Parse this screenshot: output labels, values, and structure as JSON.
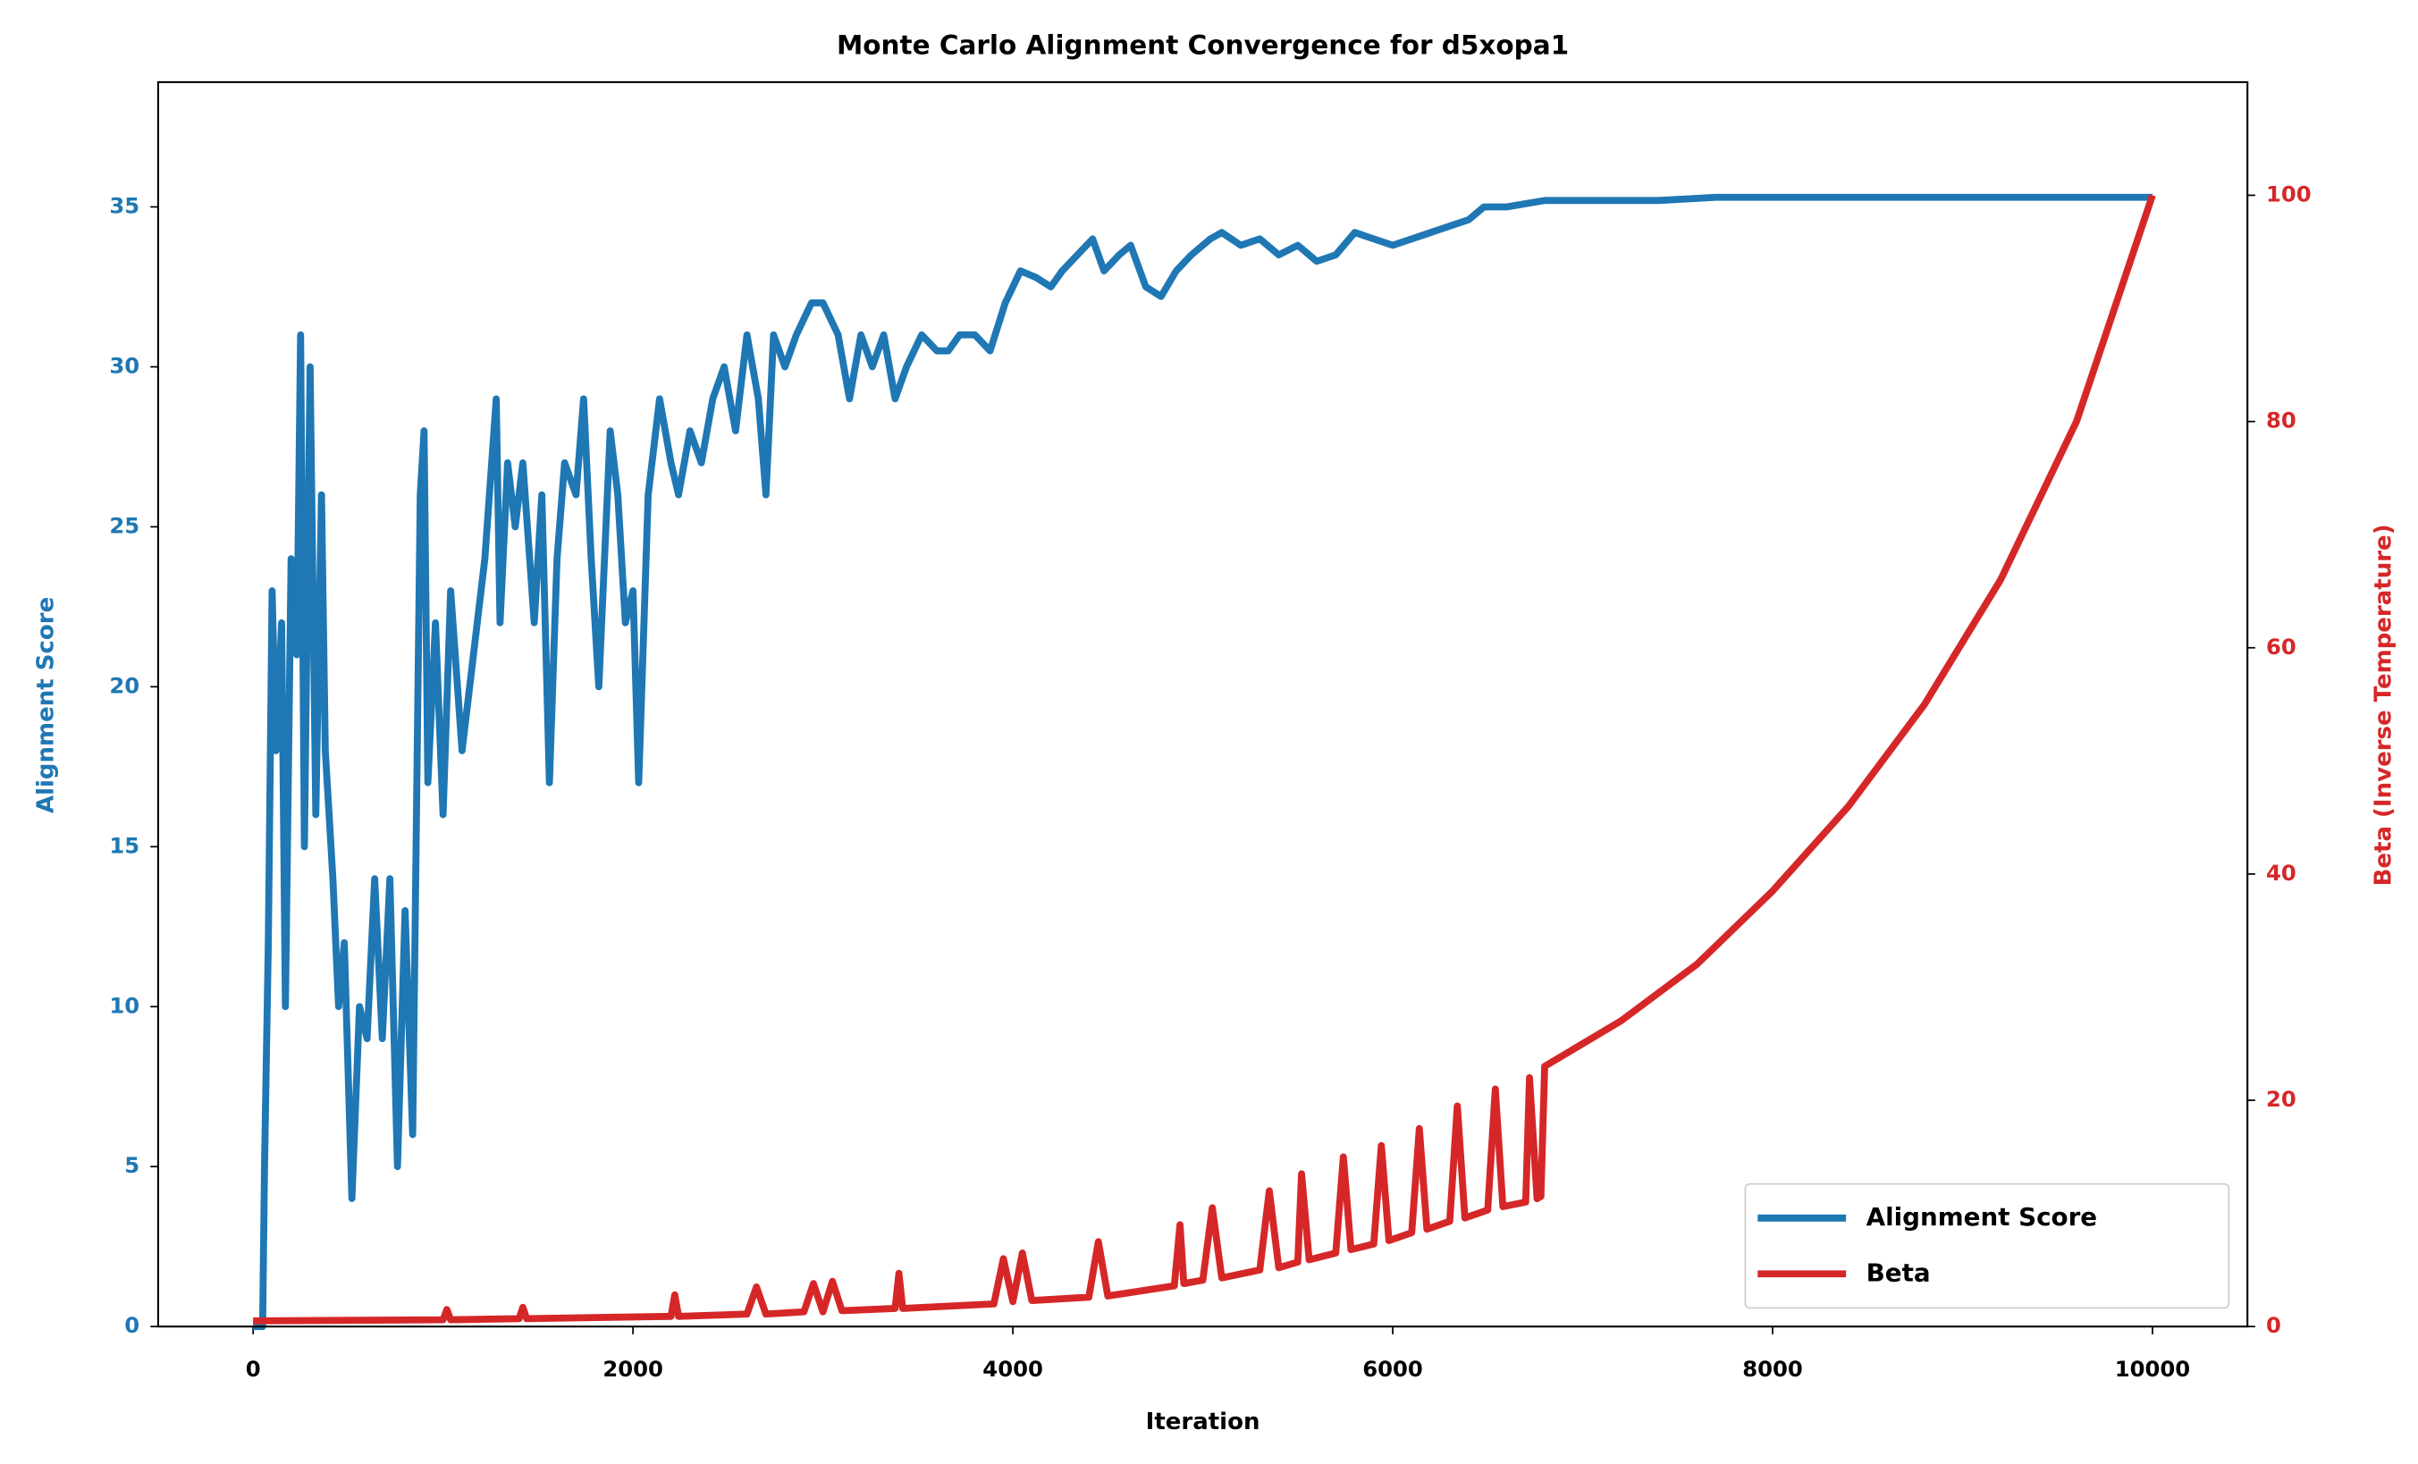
{
  "chart_data": {
    "type": "line",
    "title": "Monte Carlo Alignment Convergence for d5xopa1",
    "x_label": "Iteration",
    "y_label": "Alignment Score",
    "y2_label": "Beta (Inverse Temperature)",
    "xlim": [
      -500,
      10500
    ],
    "xticks": [
      0,
      2000,
      4000,
      6000,
      8000,
      10000
    ],
    "ylim": [
      0,
      38.9
    ],
    "yticks": [
      0,
      5,
      10,
      15,
      20,
      25,
      30,
      35
    ],
    "y2lim": [
      0,
      110
    ],
    "y2ticks": [
      0,
      20,
      40,
      60,
      80,
      100
    ],
    "legend": "lower right",
    "series": [
      {
        "name": "Alignment Score",
        "color": "#1f77b4",
        "axis": "y",
        "x": [
          0,
          50,
          60,
          80,
          100,
          120,
          150,
          170,
          200,
          230,
          250,
          270,
          300,
          330,
          360,
          380,
          420,
          450,
          480,
          520,
          560,
          600,
          640,
          680,
          720,
          760,
          800,
          840,
          860,
          880,
          900,
          920,
          960,
          1000,
          1040,
          1100,
          1160,
          1220,
          1280,
          1300,
          1340,
          1380,
          1420,
          1480,
          1520,
          1560,
          1600,
          1640,
          1700,
          1740,
          1780,
          1820,
          1880,
          1920,
          1960,
          2000,
          2030,
          2080,
          2140,
          2200,
          2240,
          2300,
          2360,
          2420,
          2480,
          2540,
          2600,
          2660,
          2700,
          2740,
          2800,
          2860,
          2940,
          3000,
          3080,
          3140,
          3200,
          3260,
          3320,
          3380,
          3440,
          3520,
          3600,
          3660,
          3720,
          3800,
          3880,
          3960,
          4040,
          4120,
          4200,
          4260,
          4340,
          4420,
          4480,
          4560,
          4620,
          4700,
          4780,
          4860,
          4940,
          5040,
          5100,
          5200,
          5300,
          5400,
          5500,
          5600,
          5700,
          5800,
          5900,
          6000,
          6100,
          6200,
          6300,
          6400,
          6480,
          6600,
          6800,
          7400,
          7700,
          10000
        ],
        "values": [
          0,
          0,
          5,
          12,
          23,
          18,
          22,
          10,
          24,
          21,
          31,
          15,
          30,
          16,
          26,
          18,
          14,
          10,
          12,
          4,
          10,
          9,
          14,
          9,
          14,
          5,
          13,
          6,
          16,
          26,
          28,
          17,
          22,
          16,
          23,
          18,
          21,
          24,
          29,
          22,
          27,
          25,
          27,
          22,
          26,
          17,
          24,
          27,
          26,
          29,
          24,
          20,
          28,
          26,
          22,
          23,
          17,
          26,
          29,
          27,
          26,
          28,
          27,
          29,
          30,
          28,
          31,
          29,
          26,
          31,
          30,
          31,
          32,
          32,
          31,
          29,
          31,
          30,
          31,
          29,
          30,
          31,
          30.5,
          30.5,
          31,
          31,
          30.5,
          32,
          33,
          32.8,
          32.5,
          33,
          33.5,
          34,
          33,
          33.5,
          33.8,
          32.5,
          32.2,
          33,
          33.5,
          34,
          34.2,
          33.8,
          34,
          33.5,
          33.8,
          33.3,
          33.5,
          34.2,
          34,
          33.8,
          34,
          34.2,
          34.4,
          34.6,
          35,
          35,
          35.2,
          35.2,
          35.3,
          35.3
        ]
      },
      {
        "name": "Beta",
        "color": "#d62728",
        "axis": "y2",
        "x": [
          0,
          1000,
          1020,
          1040,
          1400,
          1420,
          1440,
          2200,
          2220,
          2240,
          2600,
          2650,
          2700,
          2900,
          2950,
          3000,
          3050,
          3100,
          3380,
          3400,
          3420,
          3900,
          3950,
          4000,
          4050,
          4100,
          4400,
          4450,
          4500,
          4850,
          4880,
          4900,
          5000,
          5050,
          5100,
          5300,
          5350,
          5400,
          5500,
          5520,
          5560,
          5700,
          5740,
          5780,
          5900,
          5940,
          5980,
          6100,
          6140,
          6180,
          6300,
          6340,
          6380,
          6500,
          6540,
          6580,
          6700,
          6720,
          6760,
          6780,
          6800,
          7200,
          7600,
          8000,
          8400,
          8800,
          9200,
          9600,
          10000
        ],
        "values": [
          0.5,
          0.6,
          1.5,
          0.6,
          0.7,
          1.7,
          0.7,
          0.9,
          2.8,
          0.9,
          1.1,
          3.5,
          1.1,
          1.3,
          3.8,
          1.3,
          4,
          1.4,
          1.6,
          4.7,
          1.6,
          2,
          6,
          2.2,
          6.5,
          2.3,
          2.6,
          7.5,
          2.7,
          3.6,
          9,
          3.8,
          4.1,
          10.5,
          4.3,
          5,
          12,
          5.2,
          5.7,
          13.5,
          5.9,
          6.5,
          15,
          6.8,
          7.3,
          16,
          7.6,
          8.3,
          17.5,
          8.6,
          9.3,
          19.5,
          9.6,
          10.3,
          21,
          10.6,
          11,
          22,
          11.3,
          11.5,
          23,
          27,
          32,
          38.5,
          46,
          55,
          66,
          80,
          100
        ]
      }
    ]
  }
}
